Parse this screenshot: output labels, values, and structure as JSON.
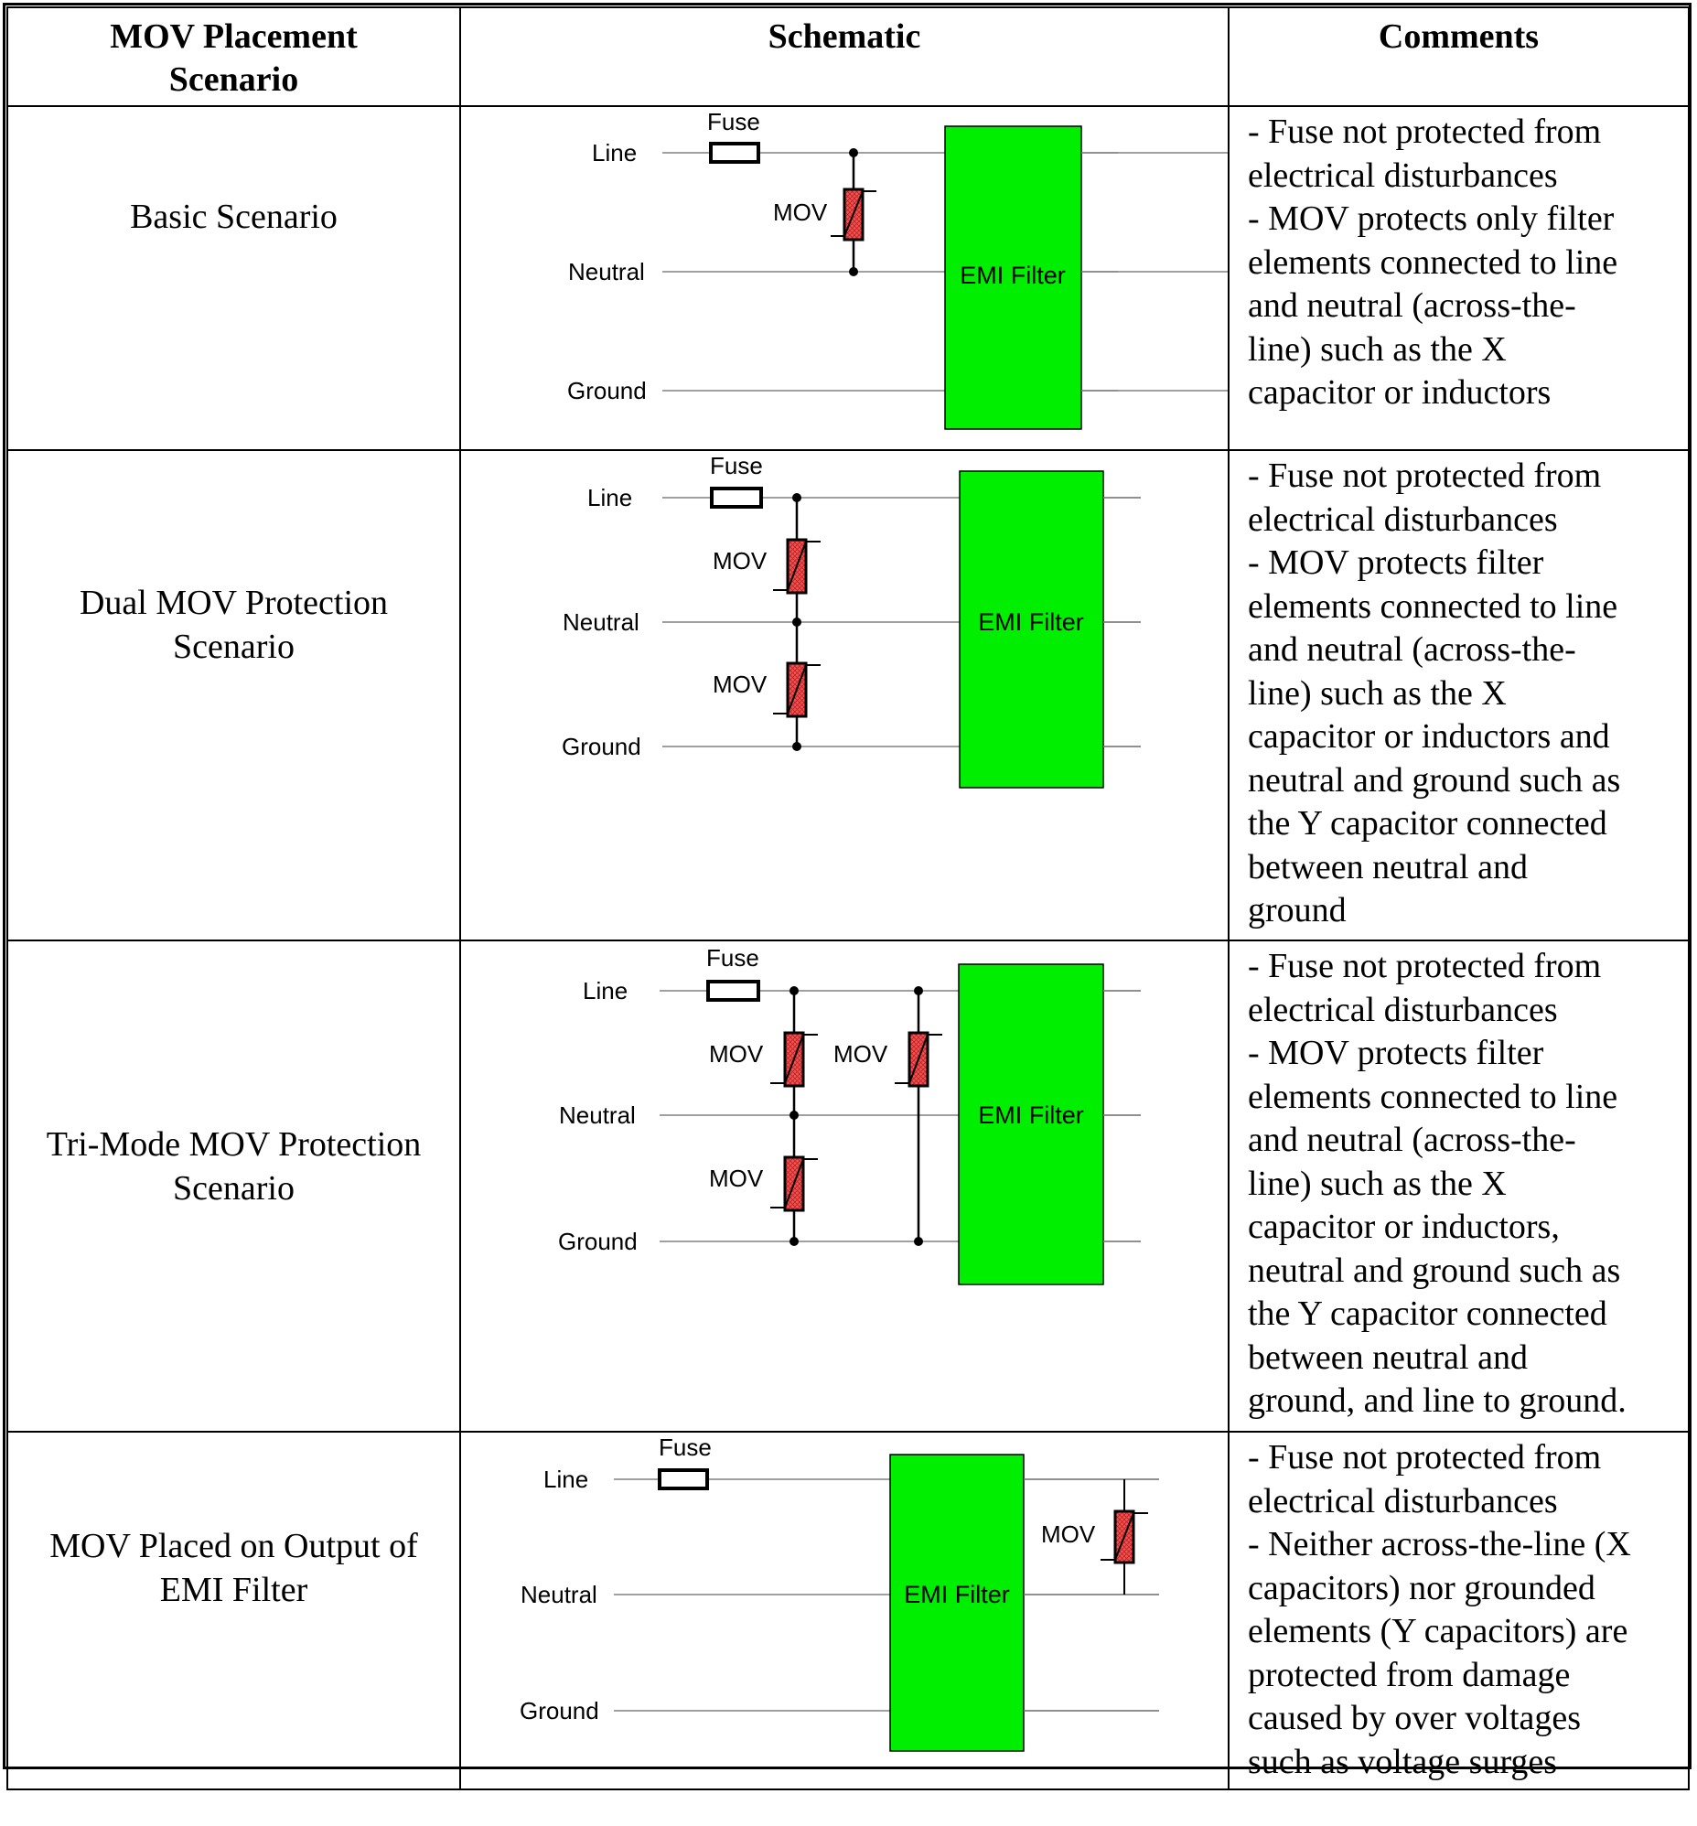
{
  "headers": {
    "scenario": "MOV Placement\nScenario",
    "schematic": "Schematic",
    "comments": "Comments"
  },
  "labels": {
    "line": "Line",
    "neutral": "Neutral",
    "ground": "Ground",
    "fuse": "Fuse",
    "mov": "MOV",
    "emi_filter": "EMI Filter"
  },
  "colors": {
    "filter": "#00ee00",
    "mov": "#ee5555"
  },
  "rows": [
    {
      "scenario": [
        "Basic Scenario"
      ],
      "comments": "- Fuse not protected from\nelectrical disturbances\n- MOV protects only filter\nelements connected to line\nand neutral (across-the-\nline) such as the X\ncapacitor or inductors"
    },
    {
      "scenario": [
        "Dual MOV Protection",
        "Scenario"
      ],
      "comments": "- Fuse not protected from\nelectrical disturbances\n- MOV protects filter\nelements connected to line\nand neutral (across-the-\nline) such as the X\ncapacitor or inductors and\nneutral and ground such as\nthe Y capacitor connected\nbetween neutral and\nground"
    },
    {
      "scenario": [
        "Tri-Mode MOV Protection",
        "Scenario"
      ],
      "comments": "- Fuse not protected from\nelectrical disturbances\n- MOV protects filter\nelements connected to line\nand neutral (across-the-\nline) such as the X\ncapacitor or inductors,\nneutral and ground such as\nthe Y capacitor connected\nbetween neutral and\nground, and line to ground."
    },
    {
      "scenario": [
        "MOV Placed on Output of",
        "EMI Filter"
      ],
      "comments": "- Fuse not protected from\nelectrical disturbances\n- Neither across-the-line (X\ncapacitors) nor grounded\nelements (Y capacitors) are\nprotected from damage\ncaused by over voltages\nsuch as voltage surges"
    }
  ]
}
